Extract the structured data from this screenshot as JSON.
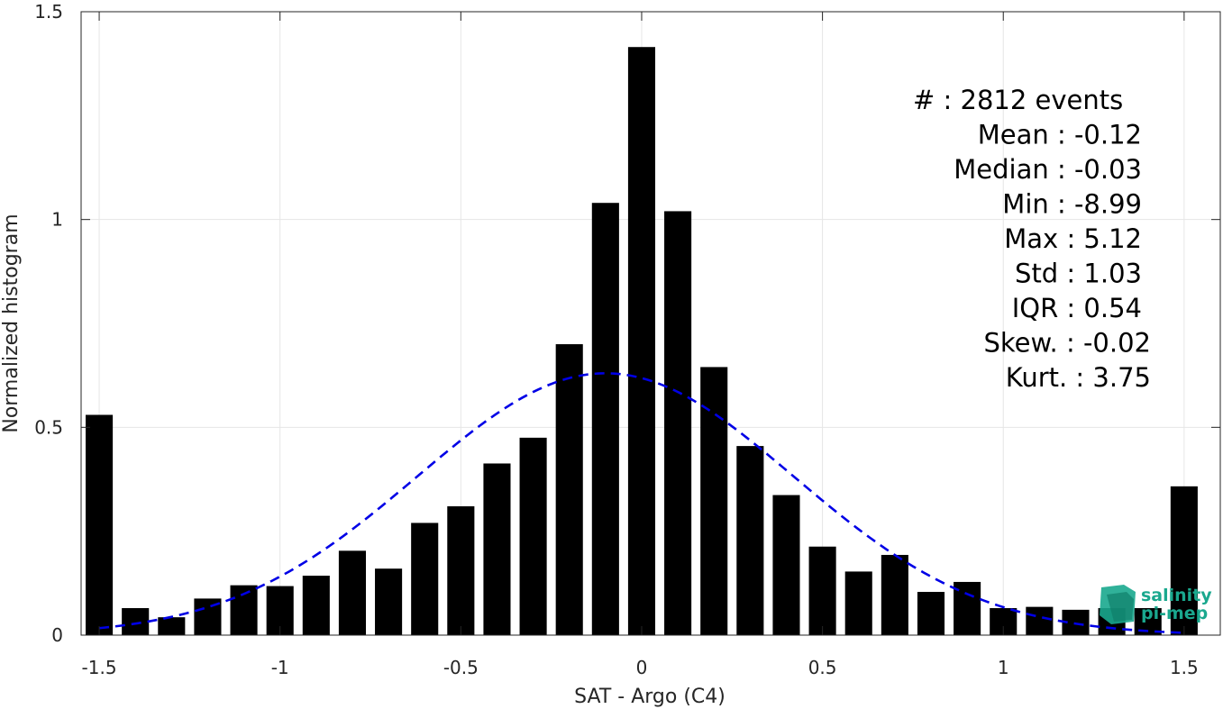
{
  "chart_data": {
    "type": "bar",
    "xlabel": "SAT - Argo (C4)",
    "ylabel": "Normalized histogram",
    "xlim": [
      -1.55,
      1.6
    ],
    "ylim": [
      0,
      1.5
    ],
    "xticks": [
      -1.5,
      -1,
      -0.5,
      0,
      0.5,
      1,
      1.5
    ],
    "xtick_labels": [
      "-1.5",
      "-1",
      "-0.5",
      "0",
      "0.5",
      "1",
      "1.5"
    ],
    "yticks": [
      0,
      0.5,
      1,
      1.5
    ],
    "ytick_labels": [
      "0",
      "0.5",
      "1",
      "1.5"
    ],
    "grid": true,
    "bar_width": 0.075,
    "x": [
      -1.5,
      -1.4,
      -1.3,
      -1.2,
      -1.1,
      -1.0,
      -0.9,
      -0.8,
      -0.7,
      -0.6,
      -0.5,
      -0.4,
      -0.3,
      -0.2,
      -0.1,
      0.0,
      0.1,
      0.2,
      0.3,
      0.4,
      0.5,
      0.6,
      0.7,
      0.8,
      0.9,
      1.0,
      1.1,
      1.2,
      1.3,
      1.4,
      1.5
    ],
    "values": [
      0.53,
      0.065,
      0.043,
      0.088,
      0.12,
      0.118,
      0.143,
      0.203,
      0.16,
      0.27,
      0.31,
      0.413,
      0.475,
      0.7,
      1.04,
      1.415,
      1.02,
      0.645,
      0.455,
      0.337,
      0.213,
      0.153,
      0.193,
      0.104,
      0.128,
      0.065,
      0.068,
      0.061,
      0.065,
      0.065,
      0.358
    ],
    "bar_color": "#000000",
    "gaussian_fit": {
      "mean": -0.1,
      "peak": 0.63,
      "std": 0.52,
      "x_range": [
        -1.5,
        1.5
      ],
      "color": "#0000e6",
      "style": "dashed"
    },
    "stats": [
      {
        "text": "#  : 2812 events"
      },
      {
        "text": "Mean : -0.12"
      },
      {
        "text": "Median : -0.03"
      },
      {
        "text": "Min : -8.99"
      },
      {
        "text": "Max : 5.12"
      },
      {
        "text": "Std : 1.03"
      },
      {
        "text": "IQR : 0.54"
      },
      {
        "text": "Skew. : -0.02"
      },
      {
        "text": "Kurt. : 3.75"
      }
    ]
  },
  "logo": {
    "line1": "salinity",
    "line2": "pi-mep",
    "color": "#1aa88e"
  }
}
